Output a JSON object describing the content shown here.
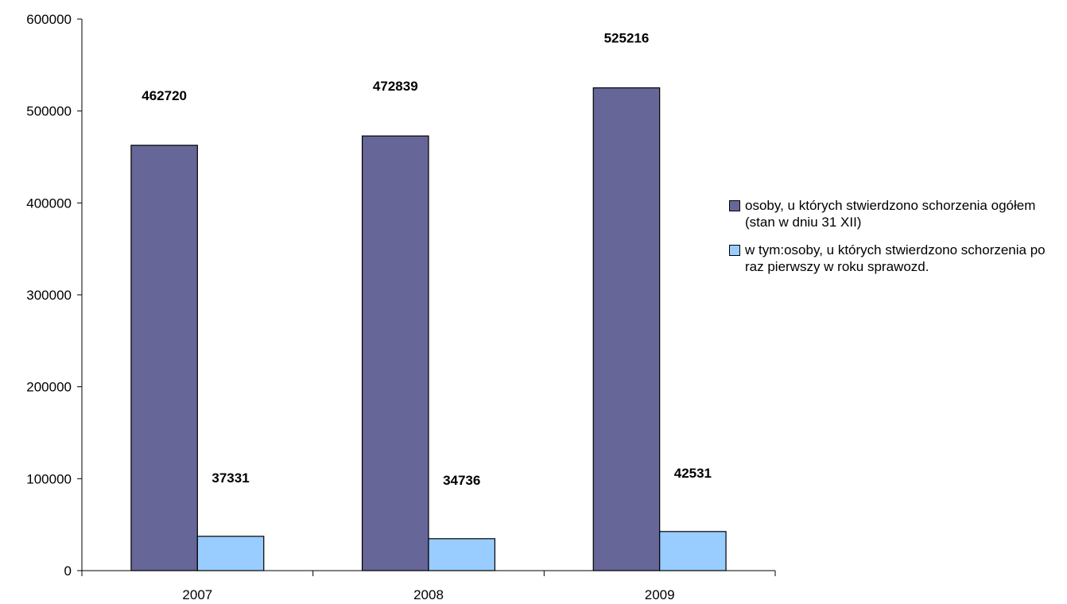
{
  "chart_data": {
    "type": "bar",
    "categories": [
      "2007",
      "2008",
      "2009"
    ],
    "series": [
      {
        "name": "osoby, u których stwierdzono schorzenia ogółem (stan w dniu 31 XII)",
        "values": [
          462720,
          472839,
          525216
        ],
        "color": "#666699"
      },
      {
        "name": "w tym:osoby, u których stwierdzono schorzenia po raz pierwszy w  roku sprawozd.",
        "values": [
          37331,
          34736,
          42531
        ],
        "color": "#99ccff"
      }
    ],
    "ylim": [
      0,
      600000
    ],
    "yticks": [
      "0",
      "100000",
      "200000",
      "300000",
      "400000",
      "500000",
      "600000"
    ],
    "data_labels": [
      [
        "462720",
        "472839",
        "525216"
      ],
      [
        "37331",
        "34736",
        "42531"
      ]
    ],
    "grid": false,
    "legend_position": "right"
  }
}
